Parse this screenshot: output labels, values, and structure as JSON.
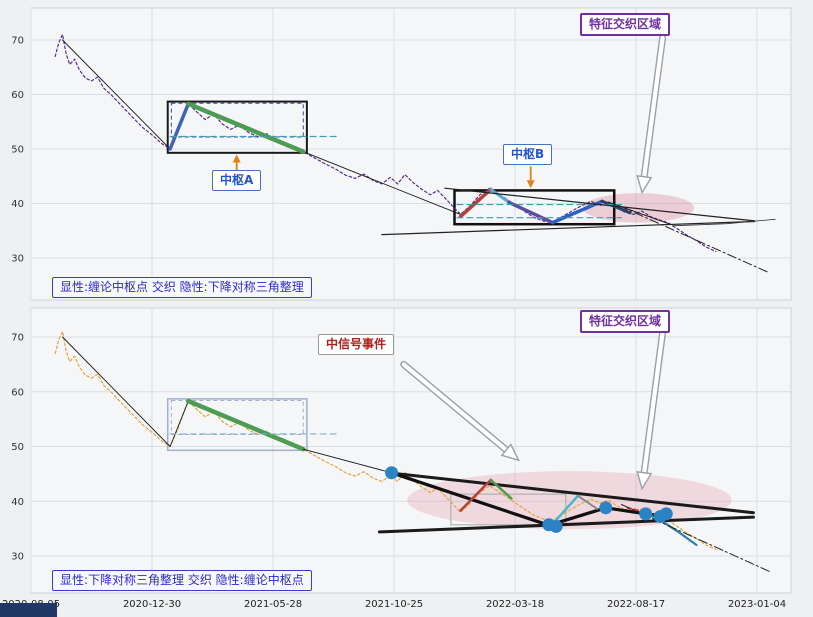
{
  "x_axis": {
    "labels": [
      "2020-08-05",
      "2020-12-30",
      "2021-05-28",
      "2021-10-25",
      "2022-03-18",
      "2022-08-17",
      "2023-01-04"
    ]
  },
  "labels": {
    "feature_region": "特征交织区域",
    "pivot_a": "中枢A",
    "pivot_b": "中枢B",
    "signal_event": "中信号事件",
    "caption_top": "显性:缠论中枢点 交织 隐性:下降对称三角整理",
    "caption_bottom": "显性:下降对称三角整理 交织 隐性:缠论中枢点"
  },
  "colors": {
    "price_top": "#5a2d8a",
    "price_bottom": "#e3a43b",
    "chan_green": "#4e9b53",
    "chan_blue": "#3f63b5",
    "dot_blue": "#2b83c6",
    "pivot_box": "#1a1a1a",
    "ellipse_pink": "rgba(216,120,150,0.33)"
  },
  "price_series": [
    [
      0.2,
      67
    ],
    [
      0.23,
      69.5
    ],
    [
      0.26,
      71
    ],
    [
      0.29,
      67.5
    ],
    [
      0.32,
      65.5
    ],
    [
      0.36,
      66.5
    ],
    [
      0.4,
      64.5
    ],
    [
      0.45,
      63
    ],
    [
      0.5,
      62.5
    ],
    [
      0.55,
      63.2
    ],
    [
      0.6,
      61.2
    ],
    [
      0.66,
      60
    ],
    [
      0.72,
      58.6
    ],
    [
      0.78,
      57.2
    ],
    [
      0.85,
      55.6
    ],
    [
      0.92,
      54
    ],
    [
      1.0,
      52.6
    ],
    [
      1.08,
      51
    ],
    [
      1.15,
      50
    ],
    [
      1.21,
      53
    ],
    [
      1.26,
      56
    ],
    [
      1.3,
      58.3
    ],
    [
      1.37,
      56.8
    ],
    [
      1.44,
      55.4
    ],
    [
      1.51,
      56.4
    ],
    [
      1.58,
      54.6
    ],
    [
      1.65,
      53.6
    ],
    [
      1.72,
      54.4
    ],
    [
      1.8,
      53
    ],
    [
      1.88,
      52.2
    ],
    [
      1.95,
      52.8
    ],
    [
      2.03,
      51.4
    ],
    [
      2.1,
      50.6
    ],
    [
      2.18,
      50.1
    ],
    [
      2.25,
      49.5
    ],
    [
      2.34,
      48.4
    ],
    [
      2.43,
      47.3
    ],
    [
      2.52,
      46.3
    ],
    [
      2.6,
      45.2
    ],
    [
      2.68,
      44.6
    ],
    [
      2.75,
      45.4
    ],
    [
      2.83,
      44.2
    ],
    [
      2.9,
      43.6
    ],
    [
      2.97,
      44.8
    ],
    [
      3.03,
      43.6
    ],
    [
      3.09,
      45.3
    ],
    [
      3.16,
      43.8
    ],
    [
      3.23,
      42.6
    ],
    [
      3.3,
      41.6
    ],
    [
      3.36,
      42.4
    ],
    [
      3.43,
      40.8
    ],
    [
      3.49,
      39.4
    ],
    [
      3.55,
      38
    ],
    [
      3.63,
      39.6
    ],
    [
      3.71,
      41.6
    ],
    [
      3.79,
      42.8
    ],
    [
      3.86,
      41.8
    ],
    [
      3.93,
      40.8
    ],
    [
      4.01,
      39.6
    ],
    [
      4.09,
      38.4
    ],
    [
      4.16,
      37.4
    ],
    [
      4.23,
      36.8
    ],
    [
      4.31,
      36.5
    ],
    [
      4.39,
      37.6
    ],
    [
      4.47,
      38.6
    ],
    [
      4.55,
      39.6
    ],
    [
      4.63,
      40.4
    ],
    [
      4.7,
      39.6
    ],
    [
      4.77,
      40.2
    ],
    [
      4.84,
      39.2
    ],
    [
      4.91,
      38.4
    ],
    [
      4.98,
      38
    ],
    [
      5.05,
      38.6
    ],
    [
      5.12,
      37.6
    ],
    [
      5.19,
      37
    ],
    [
      5.27,
      36.4
    ],
    [
      5.34,
      35.4
    ],
    [
      5.42,
      34.2
    ],
    [
      5.5,
      33.2
    ],
    [
      5.58,
      32
    ],
    [
      5.66,
      31.2
    ]
  ],
  "chart_data": [
    {
      "id": "top",
      "type": "line",
      "title": "",
      "xlabel": "",
      "ylabel": "",
      "ylim": [
        25,
        73
      ],
      "y_ticks": [
        30,
        40,
        50,
        60,
        70
      ],
      "x_unit": "tick-interval-index (0 = 2020-08-05, 1 = 2020-12-30, ... 6 = 2023-01-04)",
      "x_tick_labels": [
        "2020-08-05",
        "2020-12-30",
        "2021-05-28",
        "2021-10-25",
        "2022-03-18",
        "2022-08-17",
        "2023-01-04"
      ],
      "grid": true,
      "annotations": [
        "特征交织区域",
        "中枢A",
        "中枢B",
        "显性:缠论中枢点 交织 隐性:下降对称三角整理"
      ],
      "series": [
        {
          "name": "price",
          "ref": "price_series",
          "color": "#5a2d8a",
          "width": 1.2,
          "dash": "2.5 2.5"
        },
        {
          "name": "stroke-down-1",
          "points": [
            [
              0.26,
              70
            ],
            [
              1.15,
              50
            ]
          ],
          "color": "#1a1a1a",
          "width": 0.9
        },
        {
          "name": "stroke-mid",
          "points": [
            [
              2.25,
              49.5
            ],
            [
              3.55,
              38
            ]
          ],
          "color": "#1a1a1a",
          "width": 0.9
        },
        {
          "name": "stroke-right",
          "points": [
            [
              4.77,
              40.3
            ],
            [
              5.28,
              36.2
            ]
          ],
          "color": "#1a1a1a",
          "width": 0.9
        },
        {
          "name": "chan-up-blue",
          "points": [
            [
              1.15,
              50
            ],
            [
              1.3,
              58.3
            ]
          ],
          "color": "#3f63b5",
          "width": 3.5
        },
        {
          "name": "chan-down-green",
          "points": [
            [
              1.3,
              58.3
            ],
            [
              2.25,
              49.5
            ]
          ],
          "color": "#4e9b53",
          "width": 4.5
        },
        {
          "name": "pivotA-midline",
          "points": [
            [
              1.15,
              52.3
            ],
            [
              2.55,
              52.3
            ]
          ],
          "color": "#3f9fae",
          "width": 1.2,
          "dash": "6 4"
        },
        {
          "name": "zig-red",
          "points": [
            [
              3.55,
              37.6
            ],
            [
              3.8,
              42.6
            ]
          ],
          "color": "#b5413c",
          "width": 3.5
        },
        {
          "name": "zig-sky",
          "points": [
            [
              3.8,
              42.6
            ],
            [
              3.95,
              40.2
            ]
          ],
          "color": "#5aa7d8",
          "width": 3
        },
        {
          "name": "zig-indigo",
          "points": [
            [
              3.95,
              40.2
            ],
            [
              4.31,
              36.5
            ]
          ],
          "color": "#5b4ea0",
          "width": 3.5
        },
        {
          "name": "zig-royal",
          "points": [
            [
              4.31,
              36.5
            ],
            [
              4.72,
              40.4
            ]
          ],
          "color": "#2f5fc4",
          "width": 3.5
        },
        {
          "name": "zig-navy",
          "points": [
            [
              4.72,
              40.4
            ],
            [
              4.95,
              38.3
            ]
          ],
          "color": "#27406e",
          "width": 3
        },
        {
          "name": "pivotB-midline-1",
          "points": [
            [
              3.52,
              39.8
            ],
            [
              4.88,
              39.8
            ]
          ],
          "color": "#3f9fae",
          "width": 1.1,
          "dash": "6 4"
        },
        {
          "name": "pivotB-midline-2",
          "points": [
            [
              3.52,
              37.4
            ],
            [
              4.88,
              37.4
            ]
          ],
          "color": "#3f9fae",
          "width": 1.1,
          "dash": "6 4"
        },
        {
          "name": "triangle-upper",
          "points": [
            [
              3.42,
              42.8
            ],
            [
              5.98,
              36.8
            ]
          ],
          "color": "#222222",
          "width": 1.2
        },
        {
          "name": "triangle-lower",
          "points": [
            [
              2.9,
              34.3
            ],
            [
              5.98,
              36.7
            ]
          ],
          "color": "#222222",
          "width": 1.2
        },
        {
          "name": "tail-curve",
          "points": [
            [
              5.3,
              35.9
            ],
            [
              5.75,
              36.3
            ],
            [
              6.15,
              37.1
            ]
          ],
          "color": "#333333",
          "width": 0.8
        },
        {
          "name": "projection",
          "points": [
            [
              4.86,
              39.6
            ],
            [
              6.1,
              27.3
            ]
          ],
          "color": "#222222",
          "width": 1,
          "dash": "9 3 2 3"
        }
      ],
      "boxes": [
        {
          "name": "pivot-A-box",
          "x1": 1.13,
          "y1": 49.3,
          "x2": 2.28,
          "y2": 58.7,
          "color": "#1a1a1a",
          "width": 2
        },
        {
          "name": "pivot-A-inner",
          "x1": 1.16,
          "y1": 52.2,
          "x2": 2.25,
          "y2": 58.4,
          "color": "#33508c",
          "width": 1,
          "dash": "4 3"
        },
        {
          "name": "pivot-B-box",
          "x1": 3.5,
          "y1": 36.2,
          "x2": 4.82,
          "y2": 42.4,
          "color": "#111111",
          "width": 2.5
        }
      ],
      "ellipses": [
        {
          "name": "feature-region-ellipse",
          "cx": 5.02,
          "cy": 39.2,
          "rx": 0.46,
          "ry": 2.7,
          "fill": "rgba(216,120,150,0.33)"
        }
      ],
      "dots": [],
      "dot_color": "#2b83c6",
      "dot_r": 6.5,
      "arrows": [
        {
          "name": "pivot-a-arrow",
          "style": "solid",
          "color": "#e08214",
          "from": [
            1.7,
            46.0
          ],
          "to": [
            1.7,
            49.0
          ]
        },
        {
          "name": "pivot-b-arrow",
          "style": "solid",
          "color": "#e08214",
          "from": [
            4.13,
            46.8
          ],
          "to": [
            4.13,
            42.8
          ]
        },
        {
          "name": "feature-arrow",
          "style": "hollow",
          "from": [
            5.22,
            70.4
          ],
          "to": [
            5.05,
            42.0
          ]
        }
      ]
    },
    {
      "id": "bottom",
      "type": "line",
      "title": "",
      "xlabel": "",
      "ylabel": "",
      "ylim": [
        25,
        73
      ],
      "y_ticks": [
        30,
        40,
        50,
        60,
        70
      ],
      "x_unit": "tick-interval-index (0 = 2020-08-05, 1 = 2020-12-30, ... 6 = 2023-01-04)",
      "x_tick_labels": [
        "2020-08-05",
        "2020-12-30",
        "2021-05-28",
        "2021-10-25",
        "2022-03-18",
        "2022-08-17",
        "2023-01-04"
      ],
      "grid": true,
      "annotations": [
        "特征交织区域",
        "中信号事件",
        "显性:下降对称三角整理 交织 隐性:缠论中枢点"
      ],
      "series": [
        {
          "name": "price",
          "ref": "price_series",
          "color": "#e3a43b",
          "width": 1.2,
          "dash": "2.5 2.5"
        },
        {
          "name": "stroke-down-1",
          "points": [
            [
              0.26,
              70
            ],
            [
              1.15,
              50
            ]
          ],
          "color": "#1a1a1a",
          "width": 0.9
        },
        {
          "name": "stroke-up",
          "points": [
            [
              1.15,
              50
            ],
            [
              1.3,
              58.3
            ]
          ],
          "color": "#1a1a1a",
          "width": 0.9
        },
        {
          "name": "chan-down-green",
          "points": [
            [
              1.3,
              58.3
            ],
            [
              2.25,
              49.5
            ]
          ],
          "color": "#4e9b53",
          "width": 4.5
        },
        {
          "name": "stroke-mid",
          "points": [
            [
              2.25,
              49.5
            ],
            [
              2.98,
              45.2
            ]
          ],
          "color": "#1a1a1a",
          "width": 0.9
        },
        {
          "name": "pivotA-midline",
          "points": [
            [
              1.15,
              52.3
            ],
            [
              2.55,
              52.3
            ]
          ],
          "color": "#7fb3c9",
          "width": 1.1,
          "dash": "6 4"
        },
        {
          "name": "triangle-upper-bold",
          "points": [
            [
              2.95,
              45.2
            ],
            [
              5.97,
              37.9
            ]
          ],
          "color": "#1b1b1b",
          "width": 3
        },
        {
          "name": "triangle-lower-bold",
          "points": [
            [
              2.88,
              34.4
            ],
            [
              5.97,
              37.1
            ]
          ],
          "color": "#1b1b1b",
          "width": 3
        },
        {
          "name": "segment-zigzag-bold",
          "points": [
            [
              2.98,
              45.2
            ],
            [
              4.28,
              35.6
            ],
            [
              4.75,
              38.8
            ],
            [
              5.08,
              37.7
            ],
            [
              5.23,
              37.3
            ]
          ],
          "color": "#111111",
          "width": 3.2
        },
        {
          "name": "zig-red",
          "points": [
            [
              3.55,
              38.3
            ],
            [
              3.8,
              43.9
            ]
          ],
          "color": "#b5413c",
          "width": 2.5
        },
        {
          "name": "zig-green",
          "points": [
            [
              3.8,
              43.9
            ],
            [
              3.97,
              40.5
            ]
          ],
          "color": "#4e9b53",
          "width": 2.5
        },
        {
          "name": "zig-teal-up",
          "points": [
            [
              4.33,
              36.3
            ],
            [
              4.52,
              41.0
            ]
          ],
          "color": "#49b8c8",
          "width": 2.5
        },
        {
          "name": "zig-gray-down",
          "points": [
            [
              4.52,
              41.0
            ],
            [
              4.68,
              38.6
            ]
          ],
          "color": "#888888",
          "width": 2
        },
        {
          "name": "red-dashed",
          "points": [
            [
              4.93,
              38.8
            ],
            [
              5.18,
              37.4
            ]
          ],
          "color": "#c0392b",
          "width": 2,
          "dash": "4 3"
        },
        {
          "name": "teal-curve",
          "points": [
            [
              5.04,
              38.2
            ],
            [
              5.2,
              36.6
            ],
            [
              5.35,
              34.4
            ],
            [
              5.5,
              32.0
            ]
          ],
          "color": "#2d7fae",
          "width": 2.2
        },
        {
          "name": "projection",
          "points": [
            [
              4.88,
              39.4
            ],
            [
              6.1,
              27.2
            ]
          ],
          "color": "#222222",
          "width": 1,
          "dash": "9 3 2 3"
        }
      ],
      "boxes": [
        {
          "name": "hidden-pivot-box",
          "x1": 1.13,
          "y1": 49.3,
          "x2": 2.28,
          "y2": 58.7,
          "color": "#9fb0cf",
          "width": 1.5
        },
        {
          "name": "hidden-pivot-inner",
          "x1": 1.16,
          "y1": 52.2,
          "x2": 2.25,
          "y2": 58.4,
          "color": "#9fb0cf",
          "width": 1,
          "dash": "4 3"
        },
        {
          "name": "signal-box",
          "x1": 3.47,
          "y1": 35.7,
          "x2": 4.42,
          "y2": 41.3,
          "color": "#b0b0b0",
          "width": 1.2
        }
      ],
      "ellipses": [
        {
          "name": "feature-region-ellipse",
          "cx": 4.45,
          "cy": 40.2,
          "rx": 1.34,
          "ry": 5.3,
          "fill": "rgba(225,150,168,0.30)"
        }
      ],
      "dots": [
        [
          2.98,
          45.2
        ],
        [
          4.28,
          35.7
        ],
        [
          4.34,
          35.4
        ],
        [
          4.75,
          38.8
        ],
        [
          5.08,
          37.7
        ],
        [
          5.2,
          37.2
        ],
        [
          5.25,
          37.7
        ]
      ],
      "dot_color": "#2b83c6",
      "dot_r": 6.5,
      "arrows": [
        {
          "name": "feature-arrow",
          "style": "hollow",
          "from": [
            5.22,
            70.8
          ],
          "to": [
            5.05,
            42.3
          ]
        },
        {
          "name": "signal-arrow",
          "style": "hollow",
          "from": [
            3.08,
            65.0
          ],
          "to": [
            4.03,
            47.5
          ]
        }
      ]
    }
  ]
}
